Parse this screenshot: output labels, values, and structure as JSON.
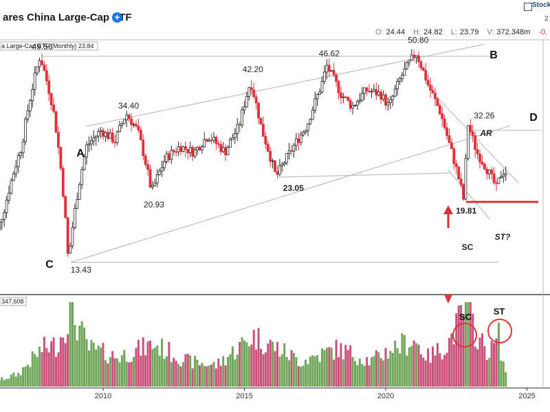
{
  "header": {
    "title": "ares China Large-Cap ETF",
    "logo_text": "Stock",
    "date_fragment": "2",
    "ohlc": [
      {
        "key": "O:",
        "value": "24.44"
      },
      {
        "key": "H:",
        "value": "24.82"
      },
      {
        "key": "L:",
        "value": "23.79"
      },
      {
        "key": "V:",
        "value": "372.348m"
      },
      {
        "key": "",
        "value": "-0."
      }
    ]
  },
  "chart_data": {
    "type": "candlestick",
    "series_label": "a Large-Cap ETF (Monthly) 23.84",
    "volume_label": "347,608",
    "x_ticks": [
      "2010",
      "2015",
      "2020",
      "2025"
    ],
    "price_axis_range": [
      11,
      55
    ],
    "annotations": {
      "price_labels": [
        {
          "text": "49.56",
          "date": 2007.85,
          "price": 49.56
        },
        {
          "text": "34.40",
          "date": 2010.9,
          "price": 34.4
        },
        {
          "text": "42.20",
          "date": 2015.3,
          "price": 42.2
        },
        {
          "text": "46.62",
          "date": 2018.0,
          "price": 46.62
        },
        {
          "text": "50.80",
          "date": 2021.15,
          "price": 50.8
        },
        {
          "text": "32.26",
          "date": 2023.0,
          "price": 32.26
        },
        {
          "text": "20.93",
          "date": 2011.8,
          "price": 20.93
        },
        {
          "text": "23.05",
          "date": 2016.2,
          "price": 23.05
        },
        {
          "text": "19.81",
          "date": 2022.85,
          "price": 19.81
        },
        {
          "text": "13.43",
          "date": 2008.85,
          "price": 13.43
        }
      ],
      "letters": [
        "A",
        "B",
        "C",
        "D"
      ],
      "notes": [
        "AR",
        "SC",
        "ST?"
      ],
      "volume_notes": [
        "SC",
        "ST"
      ]
    },
    "key_prices": {
      "high_2007": 49.56,
      "low_2008": 13.43,
      "high_2011": 34.4,
      "low_2011": 20.93,
      "high_2015": 42.2,
      "low_2016": 23.05,
      "high_2018": 46.62,
      "high_2021": 50.8,
      "low_2022": 19.81,
      "ar_2023": 32.26,
      "last_close": 23.84
    },
    "price_path": [
      [
        2006.0,
        13
      ],
      [
        2006.6,
        19
      ],
      [
        2007.2,
        28
      ],
      [
        2007.85,
        49.56
      ],
      [
        2008.3,
        36
      ],
      [
        2008.85,
        13.43
      ],
      [
        2009.5,
        28
      ],
      [
        2010.0,
        31
      ],
      [
        2010.5,
        29
      ],
      [
        2010.9,
        34.4
      ],
      [
        2011.3,
        31
      ],
      [
        2011.8,
        20.93
      ],
      [
        2012.3,
        26
      ],
      [
        2012.8,
        28
      ],
      [
        2013.3,
        27
      ],
      [
        2013.8,
        30
      ],
      [
        2014.4,
        27
      ],
      [
        2014.9,
        32
      ],
      [
        2015.3,
        42.2
      ],
      [
        2015.7,
        31
      ],
      [
        2016.2,
        23.05
      ],
      [
        2016.7,
        27
      ],
      [
        2017.3,
        32
      ],
      [
        2017.8,
        41
      ],
      [
        2018.0,
        46.62
      ],
      [
        2018.5,
        39
      ],
      [
        2018.9,
        36
      ],
      [
        2019.4,
        40
      ],
      [
        2019.9,
        39
      ],
      [
        2020.2,
        36
      ],
      [
        2020.6,
        43
      ],
      [
        2021.15,
        50.8
      ],
      [
        2021.6,
        41
      ],
      [
        2022.0,
        35
      ],
      [
        2022.3,
        29
      ],
      [
        2022.85,
        19.81
      ],
      [
        2023.0,
        32.26
      ],
      [
        2023.3,
        27
      ],
      [
        2023.7,
        24
      ],
      [
        2024.0,
        21.5
      ],
      [
        2024.2,
        23.84
      ]
    ],
    "volume_path": [
      [
        2006.0,
        0.04
      ],
      [
        2007.0,
        0.15
      ],
      [
        2007.85,
        0.45
      ],
      [
        2008.4,
        0.5
      ],
      [
        2008.85,
        0.9
      ],
      [
        2009.5,
        0.45
      ],
      [
        2010.5,
        0.35
      ],
      [
        2011.8,
        0.5
      ],
      [
        2013.0,
        0.3
      ],
      [
        2014.0,
        0.25
      ],
      [
        2015.3,
        0.6
      ],
      [
        2016.2,
        0.45
      ],
      [
        2017.0,
        0.3
      ],
      [
        2018.3,
        0.45
      ],
      [
        2019.5,
        0.3
      ],
      [
        2020.2,
        0.45
      ],
      [
        2021.0,
        0.55
      ],
      [
        2021.5,
        0.35
      ],
      [
        2022.2,
        0.5
      ],
      [
        2022.85,
        0.95
      ],
      [
        2023.3,
        0.55
      ],
      [
        2023.7,
        0.4
      ],
      [
        2024.0,
        0.6
      ],
      [
        2024.2,
        0.2
      ]
    ]
  }
}
